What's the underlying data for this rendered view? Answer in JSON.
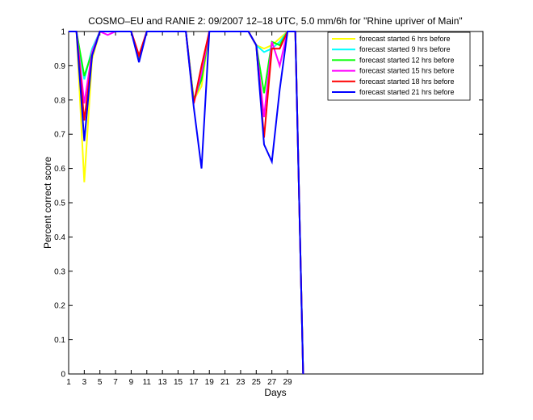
{
  "chart_data": {
    "type": "line",
    "title": "COSMO–EU and RANIE 2: 09/2007 12–18 UTC, 5.0 mm/6h for \"Rhine upriver of Main\"",
    "xlabel": "Days",
    "ylabel": "Percent correct score",
    "xlim": [
      1,
      54
    ],
    "ylim": [
      0,
      1
    ],
    "xticks": [
      1,
      3,
      5,
      7,
      9,
      11,
      13,
      15,
      17,
      19,
      21,
      23,
      25,
      27,
      29
    ],
    "yticks": [
      0,
      0.1,
      0.2,
      0.3,
      0.4,
      0.5,
      0.6,
      0.7,
      0.8,
      0.9,
      1
    ],
    "ytick_labels": [
      "0",
      "0.1",
      "0.2",
      "0.3",
      "0.4",
      "0.5",
      "0.6",
      "0.7",
      "0.8",
      "0.9",
      "1"
    ],
    "grid": false,
    "legend_position": "top-right",
    "x": [
      1,
      2,
      3,
      4,
      5,
      6,
      7,
      8,
      9,
      10,
      11,
      12,
      13,
      14,
      15,
      16,
      17,
      18,
      19,
      20,
      21,
      22,
      23,
      24,
      25,
      26,
      27,
      28,
      29,
      30,
      31
    ],
    "series": [
      {
        "name": "forecast started 6 hrs before",
        "color": "#ffff00",
        "values": [
          1,
          1,
          0.56,
          0.92,
          1,
          1,
          1,
          1,
          1,
          0.93,
          1,
          1,
          1,
          1,
          1,
          1,
          0.8,
          0.84,
          1,
          1,
          1,
          1,
          1,
          1,
          0.96,
          0.95,
          0.96,
          0.98,
          1,
          1,
          0
        ]
      },
      {
        "name": "forecast started 9 hrs before",
        "color": "#00ffff",
        "values": [
          1,
          1,
          0.86,
          0.95,
          1,
          1,
          1,
          1,
          1,
          0.92,
          1,
          1,
          1,
          1,
          1,
          1,
          0.8,
          0.86,
          1,
          1,
          1,
          1,
          1,
          1,
          0.96,
          0.94,
          0.95,
          0.97,
          1,
          1,
          0
        ]
      },
      {
        "name": "forecast started 12 hrs before",
        "color": "#00ff00",
        "values": [
          1,
          1,
          0.87,
          0.94,
          1,
          1,
          1,
          1,
          1,
          0.92,
          1,
          1,
          1,
          1,
          1,
          1,
          0.8,
          0.86,
          1,
          1,
          1,
          1,
          1,
          1,
          0.96,
          0.82,
          0.97,
          0.96,
          1,
          1,
          0
        ]
      },
      {
        "name": "forecast started 15 hrs before",
        "color": "#ff00ff",
        "values": [
          1,
          1,
          0.79,
          0.94,
          1,
          0.99,
          1,
          1,
          1,
          0.93,
          1,
          1,
          1,
          1,
          1,
          1,
          0.79,
          0.88,
          1,
          1,
          1,
          1,
          1,
          1,
          0.96,
          0.75,
          0.97,
          0.9,
          1,
          1,
          0
        ]
      },
      {
        "name": "forecast started 18 hrs before",
        "color": "#ff0000",
        "values": [
          1,
          1,
          0.74,
          0.93,
          1,
          1,
          1,
          1,
          1,
          0.93,
          1,
          1,
          1,
          1,
          1,
          1,
          0.79,
          0.9,
          1,
          1,
          1,
          1,
          1,
          1,
          0.96,
          0.69,
          0.95,
          0.95,
          1,
          1,
          0
        ]
      },
      {
        "name": "forecast started 21 hrs before",
        "color": "#0000ff",
        "values": [
          1,
          1,
          0.68,
          0.93,
          1,
          1,
          1,
          1,
          1,
          0.91,
          1,
          1,
          1,
          1,
          1,
          1,
          0.78,
          0.6,
          1,
          1,
          1,
          1,
          1,
          1,
          0.96,
          0.67,
          0.62,
          0.83,
          1,
          1,
          0
        ]
      }
    ]
  }
}
